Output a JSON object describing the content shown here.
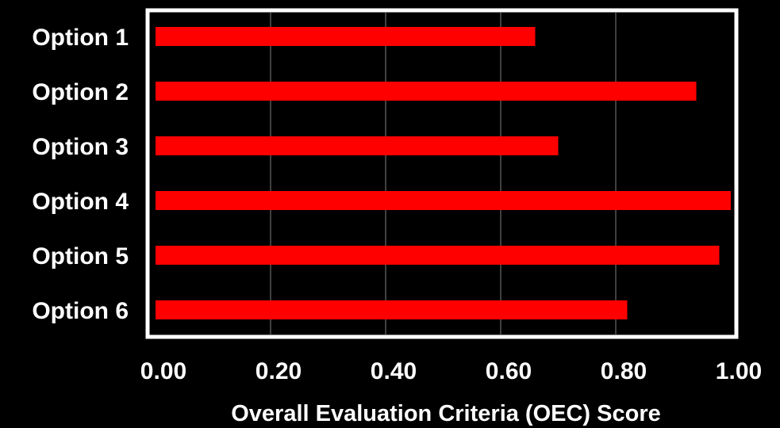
{
  "chart_data": {
    "type": "bar",
    "orientation": "horizontal",
    "title": "",
    "xlabel": "Overall Evaluation Criteria (OEC) Score",
    "ylabel": "",
    "categories": [
      "Option 1",
      "Option 2",
      "Option 3",
      "Option 4",
      "Option 5",
      "Option 6"
    ],
    "values": [
      0.66,
      0.94,
      0.7,
      1.0,
      0.98,
      0.82
    ],
    "xlim": [
      0,
      1.0
    ],
    "x_ticks": [
      "0.00",
      "0.20",
      "0.40",
      "0.60",
      "0.80",
      "1.00"
    ],
    "grid": true,
    "legend": "none",
    "colors": {
      "background": "#000000",
      "bar": "#ff0000",
      "frame": "#ffffff",
      "grid": "#808080",
      "text": "#ffffff"
    }
  }
}
